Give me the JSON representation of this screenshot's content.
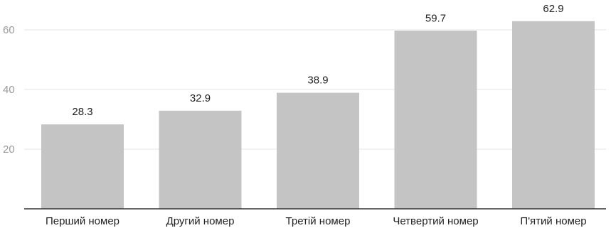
{
  "chart_data": {
    "type": "bar",
    "categories": [
      "Перший номер",
      "Другий номер",
      "Третій номер",
      "Четвертий номер",
      "П'ятий номер"
    ],
    "values": [
      28.3,
      32.9,
      38.9,
      59.7,
      62.9
    ],
    "value_labels": [
      "28.3",
      "32.9",
      "38.9",
      "59.7",
      "62.9"
    ],
    "y_ticks": [
      20,
      40,
      60
    ],
    "ylim": [
      0,
      66
    ],
    "grid": true,
    "bar_color": "#c4c4c4",
    "title": "",
    "xlabel": "",
    "ylabel": ""
  }
}
